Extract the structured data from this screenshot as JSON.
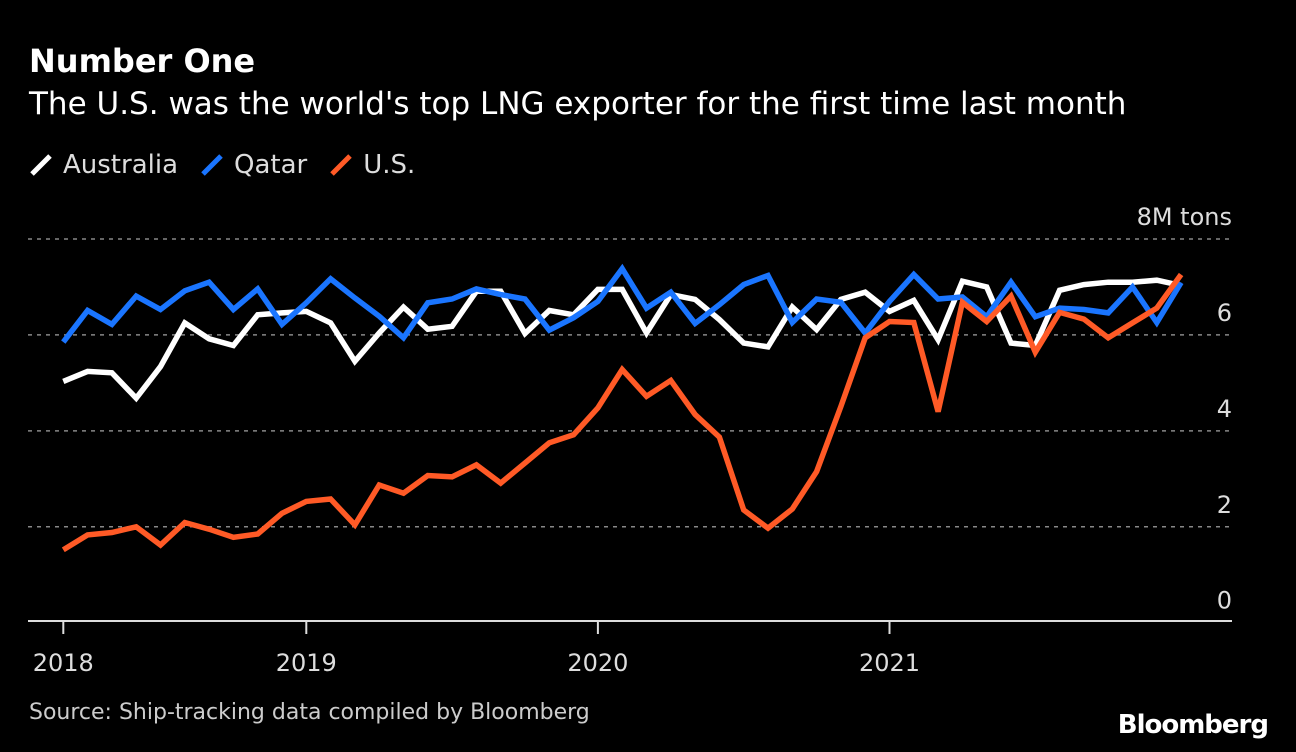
{
  "title": "Number One",
  "subtitle": "The U.S. was the world's top LNG exporter for the first time last month",
  "source": "Source: Ship-tracking data compiled by Bloomberg",
  "logo": "Bloomberg",
  "chart_data": {
    "type": "line",
    "title": "Number One",
    "subtitle": "The U.S. was the world's top LNG exporter for the first time last month",
    "ylabel": "",
    "y_unit_label": "8M tons",
    "ylim": [
      0,
      8
    ],
    "yticks": [
      {
        "value": 8,
        "label": "8M tons"
      },
      {
        "value": 6,
        "label": "6"
      },
      {
        "value": 4,
        "label": "4"
      },
      {
        "value": 2,
        "label": "2"
      },
      {
        "value": 0,
        "label": "0"
      }
    ],
    "xticks": [
      {
        "label": "2018",
        "at": "2018-03"
      },
      {
        "label": "2019",
        "at": "2019-01"
      },
      {
        "label": "2020",
        "at": "2020-01"
      },
      {
        "label": "2021",
        "at": "2021-01"
      }
    ],
    "grid": true,
    "legend_position": "top-left",
    "x": [
      "2018-03",
      "2018-04",
      "2018-05",
      "2018-06",
      "2018-07",
      "2018-08",
      "2018-09",
      "2018-10",
      "2018-11",
      "2018-12",
      "2019-01",
      "2019-02",
      "2019-03",
      "2019-04",
      "2019-05",
      "2019-06",
      "2019-07",
      "2019-08",
      "2019-09",
      "2019-10",
      "2019-11",
      "2019-12",
      "2020-01",
      "2020-02",
      "2020-03",
      "2020-04",
      "2020-05",
      "2020-06",
      "2020-07",
      "2020-08",
      "2020-09",
      "2020-10",
      "2020-11",
      "2020-12",
      "2021-01",
      "2021-02",
      "2021-03",
      "2021-04",
      "2021-05",
      "2021-06",
      "2021-07",
      "2021-08",
      "2021-09",
      "2021-10",
      "2021-11",
      "2021-12",
      "2022-01"
    ],
    "series": [
      {
        "name": "Australia",
        "color": "#ffffff",
        "values": [
          5.03,
          5.24,
          5.21,
          4.68,
          5.34,
          6.25,
          5.92,
          5.78,
          6.42,
          6.46,
          6.49,
          6.25,
          5.45,
          6.04,
          6.58,
          6.12,
          6.18,
          6.91,
          6.91,
          6.03,
          6.51,
          6.42,
          6.95,
          6.95,
          6.04,
          6.84,
          6.74,
          6.32,
          5.83,
          5.75,
          6.58,
          6.11,
          6.74,
          6.89,
          6.49,
          6.72,
          5.9,
          7.12,
          7.0,
          5.83,
          5.78,
          6.93,
          7.05,
          7.1,
          7.1,
          7.14,
          7.03
        ]
      },
      {
        "name": "Qatar",
        "color": "#1a75ff",
        "values": [
          5.85,
          6.51,
          6.22,
          6.81,
          6.53,
          6.92,
          7.1,
          6.53,
          6.96,
          6.22,
          6.67,
          7.17,
          6.77,
          6.39,
          5.94,
          6.67,
          6.75,
          6.96,
          6.84,
          6.75,
          6.1,
          6.36,
          6.7,
          7.38,
          6.56,
          6.89,
          6.24,
          6.63,
          7.05,
          7.24,
          6.26,
          6.75,
          6.68,
          6.04,
          6.7,
          7.26,
          6.75,
          6.79,
          6.38,
          7.1,
          6.38,
          6.56,
          6.53,
          6.46,
          7.0,
          6.26,
          7.09
        ]
      },
      {
        "name": "U.S.",
        "color": "#ff5a26",
        "values": [
          1.52,
          1.83,
          1.88,
          2.0,
          1.62,
          2.09,
          1.95,
          1.78,
          1.85,
          2.28,
          2.53,
          2.58,
          2.04,
          2.87,
          2.7,
          3.07,
          3.04,
          3.29,
          2.91,
          3.33,
          3.75,
          3.92,
          4.48,
          5.28,
          4.72,
          5.05,
          4.34,
          3.87,
          2.35,
          1.97,
          2.37,
          3.15,
          4.51,
          5.94,
          6.28,
          6.26,
          4.4,
          6.68,
          6.28,
          6.81,
          5.64,
          6.47,
          6.33,
          5.94,
          6.25,
          6.56,
          7.26
        ]
      }
    ]
  }
}
